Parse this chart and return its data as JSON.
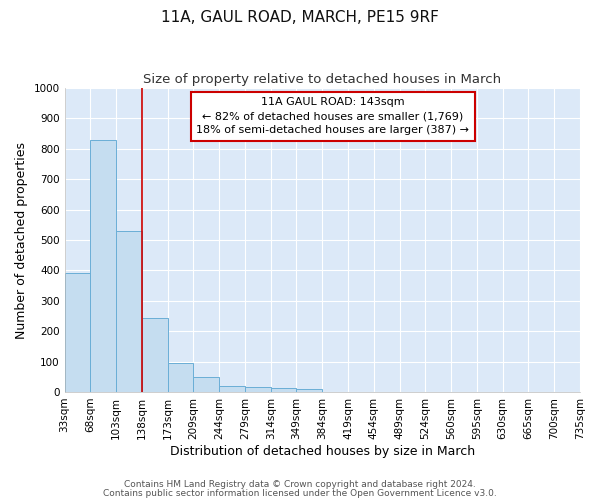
{
  "title": "11A, GAUL ROAD, MARCH, PE15 9RF",
  "subtitle": "Size of property relative to detached houses in March",
  "xlabel": "Distribution of detached houses by size in March",
  "ylabel": "Number of detached properties",
  "bar_values": [
    390,
    830,
    530,
    242,
    95,
    50,
    20,
    15,
    12,
    10,
    0,
    0,
    0,
    0,
    0,
    0,
    0,
    0,
    0,
    0
  ],
  "categories": [
    "33sqm",
    "68sqm",
    "103sqm",
    "138sqm",
    "173sqm",
    "209sqm",
    "244sqm",
    "279sqm",
    "314sqm",
    "349sqm",
    "384sqm",
    "419sqm",
    "454sqm",
    "489sqm",
    "524sqm",
    "560sqm",
    "595sqm",
    "630sqm",
    "665sqm",
    "700sqm",
    "735sqm"
  ],
  "bar_color": "#c5ddf0",
  "bar_edge_color": "#6aaed6",
  "background_color": "#dce9f8",
  "grid_color": "#ffffff",
  "ylim": [
    0,
    1000
  ],
  "yticks": [
    0,
    100,
    200,
    300,
    400,
    500,
    600,
    700,
    800,
    900,
    1000
  ],
  "vline_color": "#cc0000",
  "annotation_text": "11A GAUL ROAD: 143sqm\n← 82% of detached houses are smaller (1,769)\n18% of semi-detached houses are larger (387) →",
  "annotation_box_color": "#ffffff",
  "annotation_box_edge_color": "#cc0000",
  "footer_line1": "Contains HM Land Registry data © Crown copyright and database right 2024.",
  "footer_line2": "Contains public sector information licensed under the Open Government Licence v3.0.",
  "title_fontsize": 11,
  "subtitle_fontsize": 9.5,
  "axis_label_fontsize": 9,
  "tick_fontsize": 7.5,
  "annotation_fontsize": 8,
  "footer_fontsize": 6.5,
  "fig_background": "#ffffff"
}
